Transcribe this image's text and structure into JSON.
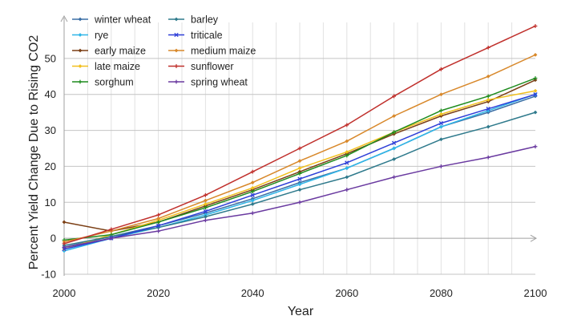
{
  "chart_data": {
    "type": "line",
    "xlabel": "Year",
    "ylabel": "Percent Yield Change Due to Rising CO2",
    "xlim": [
      2000,
      2100
    ],
    "ylim": [
      -10,
      60
    ],
    "x_ticks": [
      2000,
      2020,
      2040,
      2060,
      2080,
      2100
    ],
    "y_ticks": [
      -10,
      0,
      10,
      20,
      30,
      40,
      50
    ],
    "grid": {
      "horizontal": true,
      "vertical_years": true
    },
    "legend_position": "top-left",
    "x": [
      2000,
      2010,
      2020,
      2030,
      2040,
      2050,
      2060,
      2070,
      2080,
      2090,
      2100
    ],
    "series": [
      {
        "name": "winter wheat",
        "color": "#3a6ea5",
        "marker": "diamond",
        "values": [
          -2.5,
          0.5,
          3.5,
          7,
          11,
          15.5,
          19.5,
          25,
          31,
          35,
          39.5
        ]
      },
      {
        "name": "rye",
        "color": "#2eb6e8",
        "marker": "diamond",
        "values": [
          -3.5,
          0,
          3,
          6.5,
          10.5,
          15,
          19.5,
          25,
          31,
          35.5,
          40
        ]
      },
      {
        "name": "early maize",
        "color": "#7b3f15",
        "marker": "diamond",
        "values": [
          4.5,
          2,
          4.5,
          9,
          13.5,
          18.5,
          23.5,
          29,
          34,
          38,
          44
        ]
      },
      {
        "name": "late maize",
        "color": "#f2c01e",
        "marker": "diamond",
        "values": [
          -3,
          1,
          5,
          9.5,
          14,
          19.5,
          24,
          29.5,
          34.5,
          38.5,
          41
        ]
      },
      {
        "name": "sorghum",
        "color": "#1f8c1f",
        "marker": "plus",
        "values": [
          -0.5,
          1,
          4.5,
          8.5,
          13,
          18,
          23,
          29.5,
          35.5,
          39.5,
          44.5
        ]
      },
      {
        "name": "barley",
        "color": "#2f7a8c",
        "marker": "diamond",
        "values": [
          -2,
          0.5,
          3,
          6,
          9.5,
          13.5,
          17,
          22,
          27.5,
          31,
          35
        ]
      },
      {
        "name": "triticale",
        "color": "#2f3fd8",
        "marker": "cross",
        "values": [
          -3,
          0,
          3.5,
          7.5,
          12,
          16.5,
          21,
          26.5,
          32,
          36,
          40
        ]
      },
      {
        "name": "medium maize",
        "color": "#d8882a",
        "marker": "diamond",
        "values": [
          -1,
          2,
          5.5,
          10.5,
          15.5,
          21.5,
          27,
          34,
          40,
          45,
          51
        ]
      },
      {
        "name": "sunflower",
        "color": "#c0302c",
        "marker": "plus",
        "values": [
          -1.5,
          2.5,
          6.5,
          12,
          18.5,
          25,
          31.5,
          39.5,
          47,
          53,
          59
        ]
      },
      {
        "name": "spring wheat",
        "color": "#6a3aa0",
        "marker": "plus",
        "values": [
          -2.5,
          0,
          2,
          5,
          7,
          10,
          13.5,
          17,
          20,
          22.5,
          25.5
        ]
      }
    ]
  }
}
